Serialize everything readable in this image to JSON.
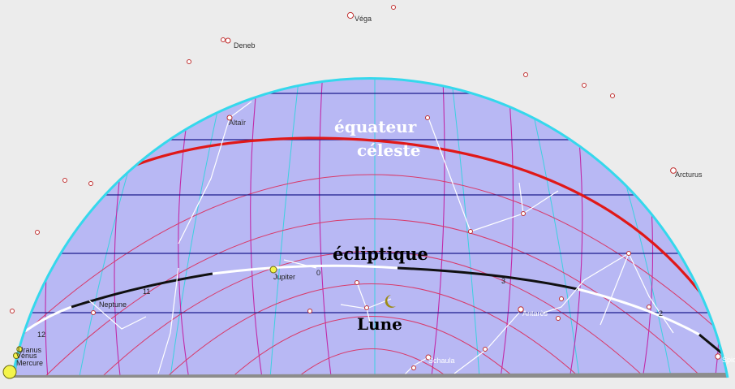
{
  "colors": {
    "background": "#ececec",
    "sky_fill": "#b8b8f4",
    "horizon_rim": "#35d8ec",
    "celestial_equator": "#e01818",
    "ecliptic_black": "#101010",
    "ecliptic_white": "#ffffff",
    "declination_lines": "#1c1c8c",
    "hour_circles": "#c02aa8",
    "altitude_circles": "#d83a6a",
    "azimuth_lines": "#3cd0e0",
    "horizon_line": "#8c8c8c",
    "constellation_lines": "#ffffff",
    "planet_fill": "#f4f44c",
    "moon_color": "#9c8a14"
  },
  "labels": {
    "equator_line1": "équateur",
    "equator_line2": "céleste",
    "ecliptic": "écliptique",
    "moon": "Lune"
  },
  "stars": [
    {
      "name": "Véga"
    },
    {
      "name": "Deneb"
    },
    {
      "name": "Altaïr"
    },
    {
      "name": "Arcturus"
    },
    {
      "name": "Antarès"
    },
    {
      "name": "Schaula"
    },
    {
      "name": "Spic"
    }
  ],
  "planets": [
    {
      "name": "Jupiter"
    },
    {
      "name": "Neptune"
    },
    {
      "name": "Uranus"
    },
    {
      "name": "Vénus"
    },
    {
      "name": "Mercure"
    }
  ],
  "ecliptic_marks": [
    "12",
    "11",
    "0",
    "3",
    "2"
  ],
  "moon_icon": "crescent-moon-icon",
  "sun_icon": "sun-icon"
}
